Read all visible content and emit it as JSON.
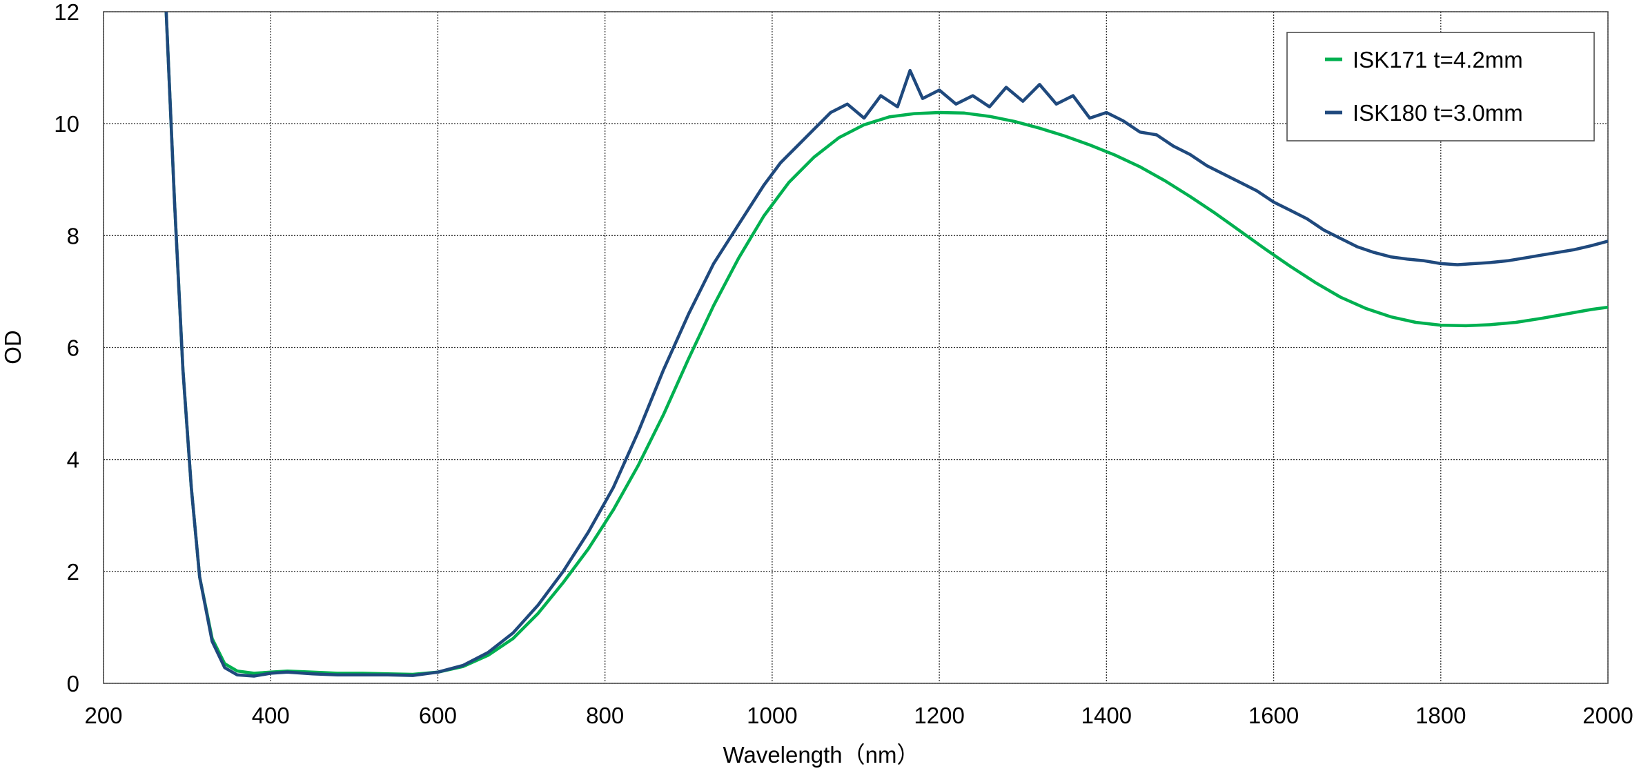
{
  "chart_data": {
    "type": "line",
    "title": "",
    "xlabel": "Wavelength（nm）",
    "ylabel": "OD",
    "xlim": [
      200,
      2000
    ],
    "ylim": [
      0,
      12
    ],
    "x_ticks": [
      "200",
      "400",
      "600",
      "800",
      "1000",
      "1200",
      "1400",
      "1600",
      "1800",
      "2000"
    ],
    "y_ticks": [
      "0",
      "2",
      "4",
      "6",
      "8",
      "10",
      "12"
    ],
    "grid": true,
    "legend_position": "top-right",
    "series": [
      {
        "name": "ISK171 t=4.2mm",
        "color": "#00b050",
        "x": [
          275,
          285,
          295,
          305,
          315,
          330,
          345,
          360,
          380,
          400,
          420,
          450,
          480,
          510,
          540,
          570,
          600,
          630,
          660,
          690,
          720,
          750,
          780,
          810,
          840,
          870,
          900,
          930,
          960,
          990,
          1020,
          1050,
          1080,
          1110,
          1140,
          1170,
          1200,
          1230,
          1260,
          1290,
          1320,
          1350,
          1380,
          1410,
          1440,
          1470,
          1500,
          1530,
          1560,
          1590,
          1620,
          1650,
          1680,
          1710,
          1740,
          1770,
          1800,
          1830,
          1860,
          1890,
          1920,
          1950,
          1980,
          2000
        ],
        "y": [
          12.0,
          8.6,
          5.6,
          3.5,
          1.9,
          0.8,
          0.35,
          0.22,
          0.18,
          0.2,
          0.22,
          0.2,
          0.18,
          0.18,
          0.17,
          0.16,
          0.2,
          0.3,
          0.5,
          0.8,
          1.25,
          1.8,
          2.4,
          3.1,
          3.9,
          4.8,
          5.8,
          6.75,
          7.6,
          8.35,
          8.95,
          9.4,
          9.75,
          9.98,
          10.12,
          10.18,
          10.2,
          10.19,
          10.13,
          10.04,
          9.92,
          9.78,
          9.62,
          9.44,
          9.23,
          8.98,
          8.7,
          8.4,
          8.08,
          7.76,
          7.45,
          7.16,
          6.9,
          6.7,
          6.55,
          6.45,
          6.4,
          6.39,
          6.41,
          6.45,
          6.52,
          6.6,
          6.68,
          6.72
        ]
      },
      {
        "name": "ISK180 t=3.0mm",
        "color": "#1f497d",
        "x": [
          275,
          285,
          295,
          305,
          315,
          330,
          345,
          360,
          380,
          400,
          420,
          450,
          480,
          510,
          540,
          570,
          600,
          630,
          660,
          690,
          720,
          750,
          780,
          810,
          840,
          870,
          900,
          930,
          960,
          990,
          1010,
          1030,
          1050,
          1070,
          1090,
          1110,
          1130,
          1150,
          1165,
          1180,
          1200,
          1220,
          1240,
          1260,
          1280,
          1300,
          1320,
          1340,
          1360,
          1380,
          1400,
          1420,
          1440,
          1460,
          1480,
          1500,
          1520,
          1540,
          1560,
          1580,
          1600,
          1620,
          1640,
          1660,
          1680,
          1700,
          1720,
          1740,
          1760,
          1780,
          1800,
          1820,
          1840,
          1860,
          1880,
          1900,
          1920,
          1940,
          1960,
          1980,
          2000
        ],
        "y": [
          12.0,
          8.6,
          5.6,
          3.5,
          1.9,
          0.75,
          0.28,
          0.15,
          0.13,
          0.18,
          0.2,
          0.17,
          0.15,
          0.15,
          0.15,
          0.14,
          0.2,
          0.32,
          0.55,
          0.9,
          1.4,
          2.0,
          2.7,
          3.5,
          4.5,
          5.6,
          6.6,
          7.5,
          8.2,
          8.9,
          9.3,
          9.6,
          9.9,
          10.2,
          10.35,
          10.1,
          10.5,
          10.3,
          10.95,
          10.45,
          10.6,
          10.35,
          10.5,
          10.3,
          10.65,
          10.4,
          10.7,
          10.35,
          10.5,
          10.1,
          10.2,
          10.05,
          9.85,
          9.8,
          9.6,
          9.45,
          9.25,
          9.1,
          8.95,
          8.8,
          8.6,
          8.45,
          8.3,
          8.1,
          7.95,
          7.8,
          7.7,
          7.62,
          7.58,
          7.55,
          7.5,
          7.48,
          7.5,
          7.52,
          7.55,
          7.6,
          7.65,
          7.7,
          7.75,
          7.82,
          7.9
        ]
      }
    ]
  }
}
